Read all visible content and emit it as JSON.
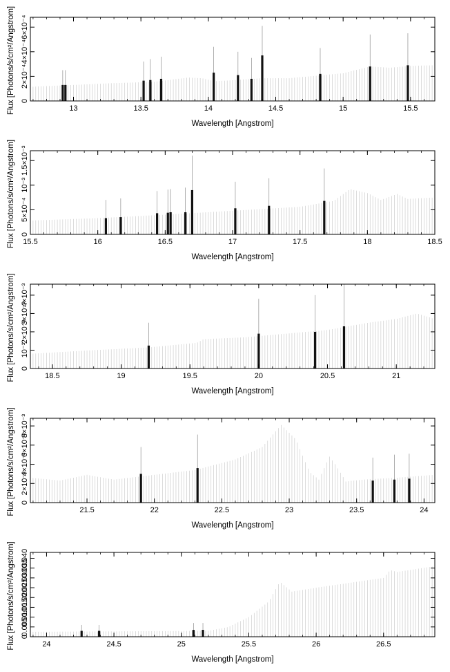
{
  "chart_data": [
    {
      "type": "bar",
      "xlabel": "Wavelength [Angstrom]",
      "ylabel": "Flux [Photons/s/cm²/Angstrom]",
      "xlim": [
        12.68,
        15.68
      ],
      "ylim": [
        0,
        0.00068
      ],
      "xticks": [
        13,
        13.5,
        14,
        14.5,
        15,
        15.5
      ],
      "xtick_labels": [
        "13",
        "13.5",
        "14",
        "14.5",
        "15",
        "15.5"
      ],
      "yticks": [
        0,
        0.0002,
        0.0004,
        0.0006
      ],
      "ytick_labels": [
        "0",
        "2×10⁻⁴",
        "4×10⁻⁴",
        "6×10⁻⁴"
      ],
      "background": [
        [
          12.68,
          0.000115
        ],
        [
          13.0,
          0.00013
        ],
        [
          13.3,
          0.000145
        ],
        [
          13.6,
          0.000155
        ],
        [
          13.85,
          0.00019
        ],
        [
          13.95,
          0.000185
        ],
        [
          14.05,
          0.00016
        ],
        [
          14.2,
          0.00017
        ],
        [
          14.4,
          0.000185
        ],
        [
          14.6,
          0.000185
        ],
        [
          14.85,
          0.00021
        ],
        [
          15.0,
          0.000225
        ],
        [
          15.2,
          0.00028
        ],
        [
          15.35,
          0.00027
        ],
        [
          15.5,
          0.000285
        ],
        [
          15.68,
          0.00029
        ]
      ],
      "lines": [
        {
          "x": 12.92,
          "y": 0.00013,
          "err": 0.00025
        },
        {
          "x": 12.94,
          "y": 0.00013,
          "err": 0.00025
        },
        {
          "x": 13.52,
          "y": 0.000165,
          "err": 0.00032
        },
        {
          "x": 13.57,
          "y": 0.00017,
          "err": 0.00034
        },
        {
          "x": 13.65,
          "y": 0.00018,
          "err": 0.00036
        },
        {
          "x": 14.04,
          "y": 0.00023,
          "err": 0.00044
        },
        {
          "x": 14.22,
          "y": 0.00021,
          "err": 0.0004
        },
        {
          "x": 14.32,
          "y": 0.00018,
          "err": 0.00035
        },
        {
          "x": 14.4,
          "y": 0.00037,
          "err": 0.00061
        },
        {
          "x": 14.83,
          "y": 0.00022,
          "err": 0.00043
        },
        {
          "x": 15.2,
          "y": 0.00028,
          "err": 0.00054
        },
        {
          "x": 15.48,
          "y": 0.00029,
          "err": 0.00055
        }
      ]
    },
    {
      "type": "bar",
      "xlabel": "Wavelength [Angstrom]",
      "ylabel": "Flux [Photons/s/cm²/Angstrom]",
      "xlim": [
        15.5,
        18.5
      ],
      "ylim": [
        0,
        0.0017
      ],
      "xticks": [
        15.5,
        16,
        16.5,
        17,
        17.5,
        18,
        18.5
      ],
      "xtick_labels": [
        "15.5",
        "16",
        "16.5",
        "17",
        "17.5",
        "18",
        "18.5"
      ],
      "yticks": [
        0,
        0.0005,
        0.001,
        0.0015
      ],
      "ytick_labels": [
        "0",
        "5×10⁻⁴",
        "10⁻³",
        "1.5×10⁻³"
      ],
      "background": [
        [
          15.5,
          0.00028
        ],
        [
          16.0,
          0.00033
        ],
        [
          16.5,
          0.0004
        ],
        [
          17.0,
          0.00048
        ],
        [
          17.5,
          0.00056
        ],
        [
          17.75,
          0.00068
        ],
        [
          17.87,
          0.00092
        ],
        [
          18.0,
          0.00084
        ],
        [
          18.1,
          0.0007
        ],
        [
          18.22,
          0.00082
        ],
        [
          18.3,
          0.00072
        ],
        [
          18.5,
          0.00075
        ]
      ],
      "lines": [
        {
          "x": 16.06,
          "y": 0.00033,
          "err": 0.0007
        },
        {
          "x": 16.17,
          "y": 0.00035,
          "err": 0.00073
        },
        {
          "x": 16.44,
          "y": 0.00043,
          "err": 0.00088
        },
        {
          "x": 16.52,
          "y": 0.00044,
          "err": 0.00091
        },
        {
          "x": 16.54,
          "y": 0.00045,
          "err": 0.00092
        },
        {
          "x": 16.65,
          "y": 0.00045,
          "err": 0.00095
        },
        {
          "x": 16.7,
          "y": 0.0009,
          "err": 0.0016
        },
        {
          "x": 17.02,
          "y": 0.00053,
          "err": 0.00107
        },
        {
          "x": 17.27,
          "y": 0.00058,
          "err": 0.00114
        },
        {
          "x": 17.68,
          "y": 0.00068,
          "err": 0.00134
        }
      ]
    },
    {
      "type": "bar",
      "xlabel": "Wavelength [Angstrom]",
      "ylabel": "Flux [Photons/s/cm²/Angstrom]",
      "xlim": [
        18.34,
        21.28
      ],
      "ylim": [
        0,
        0.0046
      ],
      "xticks": [
        18.5,
        19,
        19.5,
        20,
        20.5,
        21
      ],
      "xtick_labels": [
        "18.5",
        "19",
        "19.5",
        "20",
        "20.5",
        "21"
      ],
      "yticks": [
        0,
        0.001,
        0.002,
        0.003,
        0.004
      ],
      "ytick_labels": [
        "0",
        "10⁻³",
        "2×10⁻³",
        "3×10⁻³",
        "4×10⁻³"
      ],
      "background": [
        [
          18.34,
          0.0008
        ],
        [
          18.8,
          0.001
        ],
        [
          19.2,
          0.00115
        ],
        [
          19.55,
          0.0014
        ],
        [
          19.6,
          0.0016
        ],
        [
          19.9,
          0.0017
        ],
        [
          20.2,
          0.0019
        ],
        [
          20.5,
          0.0021
        ],
        [
          20.8,
          0.0025
        ],
        [
          21.0,
          0.0027
        ],
        [
          21.15,
          0.003
        ],
        [
          21.28,
          0.0027
        ]
      ],
      "lines": [
        {
          "x": 19.2,
          "y": 0.00125,
          "err": 0.0025
        },
        {
          "x": 20.0,
          "y": 0.0019,
          "err": 0.0038
        },
        {
          "x": 20.41,
          "y": 0.002,
          "err": 0.004
        },
        {
          "x": 20.62,
          "y": 0.0023,
          "err": 0.0046
        }
      ]
    },
    {
      "type": "bar",
      "xlabel": "Wavelength [Angstrom]",
      "ylabel": "Flux [Photons/s/cm²/Angstrom]",
      "xlim": [
        21.08,
        24.08
      ],
      "ylim": [
        0,
        0.0088
      ],
      "xticks": [
        21.5,
        22,
        22.5,
        23,
        23.5,
        24
      ],
      "xtick_labels": [
        "21.5",
        "22",
        "22.5",
        "23",
        "23.5",
        "24"
      ],
      "yticks": [
        0,
        0.002,
        0.004,
        0.006,
        0.008
      ],
      "ytick_labels": [
        "0",
        "2×10⁻³",
        "4×10⁻³",
        "6×10⁻³",
        "8×10⁻³"
      ],
      "background": [
        [
          21.08,
          0.0026
        ],
        [
          21.3,
          0.0023
        ],
        [
          21.5,
          0.0029
        ],
        [
          21.7,
          0.0024
        ],
        [
          22.0,
          0.0029
        ],
        [
          22.3,
          0.0034
        ],
        [
          22.6,
          0.0045
        ],
        [
          22.8,
          0.0058
        ],
        [
          22.94,
          0.0081
        ],
        [
          23.05,
          0.0066
        ],
        [
          23.15,
          0.0032
        ],
        [
          23.22,
          0.0024
        ],
        [
          23.3,
          0.0048
        ],
        [
          23.35,
          0.0038
        ],
        [
          23.42,
          0.0022
        ],
        [
          23.55,
          0.0024
        ],
        [
          23.8,
          0.0026
        ],
        [
          24.08,
          0.0029
        ]
      ],
      "lines": [
        {
          "x": 21.9,
          "y": 0.003,
          "err": 0.0058
        },
        {
          "x": 22.32,
          "y": 0.0036,
          "err": 0.0071
        },
        {
          "x": 23.62,
          "y": 0.0023,
          "err": 0.0047
        },
        {
          "x": 23.78,
          "y": 0.0024,
          "err": 0.005
        },
        {
          "x": 23.89,
          "y": 0.0025,
          "err": 0.0051
        }
      ]
    },
    {
      "type": "bar",
      "xlabel": "Wavelength [Angstrom]",
      "ylabel": "Flux [Photons/s/cm²/Angstrom]",
      "xlim": [
        23.88,
        26.88
      ],
      "ylim": [
        0,
        0.043
      ],
      "xticks": [
        24,
        24.5,
        25,
        25.5,
        26,
        26.5
      ],
      "xtick_labels": [
        "24",
        "24.5",
        "25",
        "25.5",
        "26",
        "26.5"
      ],
      "yticks": [
        0,
        0.005,
        0.01,
        0.015,
        0.02,
        0.025,
        0.03,
        0.035,
        0.04
      ],
      "ytick_labels": [
        "0",
        "0.005",
        "0.010",
        "0.015",
        "0.020",
        "0.025",
        "0.030",
        "0.035",
        "0.040"
      ],
      "background": [
        [
          23.88,
          0.0025
        ],
        [
          25.2,
          0.003
        ],
        [
          25.35,
          0.005
        ],
        [
          25.5,
          0.01
        ],
        [
          25.65,
          0.018
        ],
        [
          25.73,
          0.028
        ],
        [
          25.82,
          0.023
        ],
        [
          26.0,
          0.025
        ],
        [
          26.3,
          0.028
        ],
        [
          26.5,
          0.03
        ],
        [
          26.55,
          0.034
        ],
        [
          26.6,
          0.033
        ],
        [
          26.88,
          0.036
        ]
      ],
      "lines": [
        {
          "x": 24.26,
          "y": 0.003,
          "err": 0.006
        },
        {
          "x": 24.39,
          "y": 0.003,
          "err": 0.006
        },
        {
          "x": 25.09,
          "y": 0.0035,
          "err": 0.007
        },
        {
          "x": 25.16,
          "y": 0.0035,
          "err": 0.007
        }
      ]
    }
  ]
}
